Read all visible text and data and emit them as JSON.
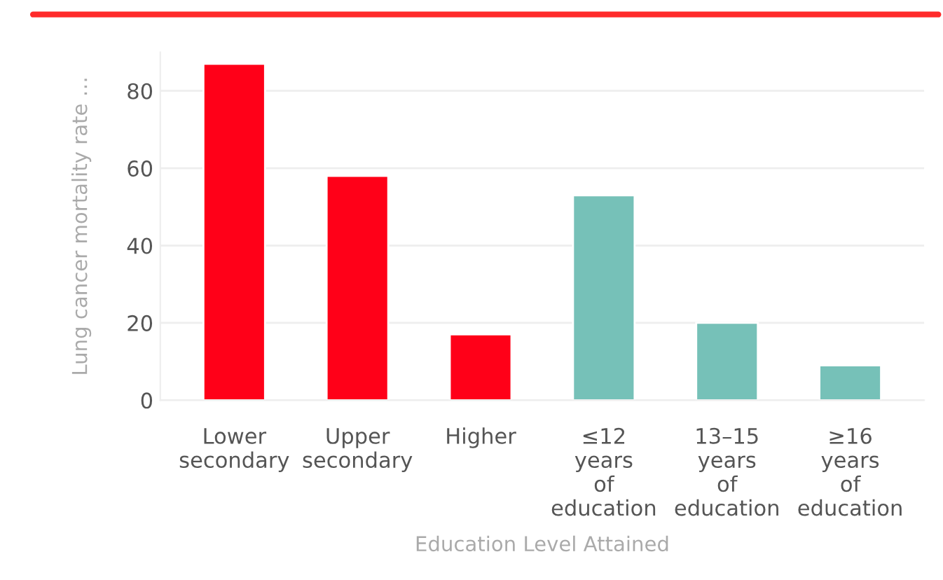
{
  "chart_data": {
    "type": "bar",
    "categories": [
      "Lower\nsecondary",
      "Upper\nsecondary",
      "Higher",
      "≤12\nyears\nof\neducation",
      "13–15\nyears\nof\neducation",
      "≥16\nyears\nof\neducation"
    ],
    "values": [
      87,
      58,
      17,
      53,
      20,
      9
    ],
    "colors": [
      "#ff0018",
      "#ff0018",
      "#ff0018",
      "#76c1b8",
      "#76c1b8",
      "#76c1b8"
    ],
    "xlabel": "Education Level Attained",
    "ylabel": "Lung cancer mortality rate …",
    "ylim": [
      0,
      90
    ],
    "yticks": [
      0,
      20,
      40,
      60,
      80
    ],
    "grid": "y"
  }
}
